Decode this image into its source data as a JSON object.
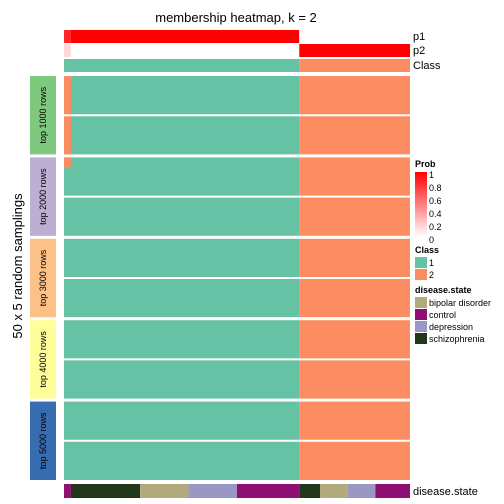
{
  "chart_data": {
    "type": "heatmap",
    "title": "membership heatmap, k = 2",
    "ylabel": "50 x 5 random samplings",
    "top_annotations": [
      "p1",
      "p2",
      "Class"
    ],
    "bottom_annotation": "disease.state",
    "row_groups": [
      "top 1000 rows",
      "top 2000 rows",
      "top 3000 rows",
      "top 4000 rows",
      "top 5000 rows"
    ],
    "class_split_fraction": 0.68,
    "outlier_fraction": 0.02,
    "p1": {
      "left": 0.85,
      "main_cluster1": 1.0,
      "cluster2": 0.0
    },
    "p2": {
      "left": 0.15,
      "main_cluster1": 0.0,
      "cluster2": 1.0
    },
    "disease_state_segments": [
      {
        "class": "control",
        "width": 0.02
      },
      {
        "class": "schizophrenia",
        "width": 0.2
      },
      {
        "class": "bipolar disorder",
        "width": 0.14
      },
      {
        "class": "depression",
        "width": 0.14
      },
      {
        "class": "control",
        "width": 0.18
      },
      {
        "class": "schizophrenia",
        "width": 0.06
      },
      {
        "class": "bipolar disorder",
        "width": 0.08
      },
      {
        "class": "depression",
        "width": 0.08
      },
      {
        "class": "control",
        "width": 0.1
      }
    ],
    "legends": {
      "prob": {
        "title": "Prob",
        "ticks": [
          "1",
          "0.8",
          "0.6",
          "0.4",
          "0.2",
          "0"
        ]
      },
      "class": {
        "title": "Class",
        "items": [
          {
            "label": "1",
            "color": "#66C2A5"
          },
          {
            "label": "2",
            "color": "#FC8D62"
          }
        ]
      },
      "disease_state": {
        "title": "disease.state",
        "items": [
          {
            "label": "bipolar disorder",
            "color": "#B2AA7C"
          },
          {
            "label": "control",
            "color": "#8F0F72"
          },
          {
            "label": "depression",
            "color": "#9B97C4"
          },
          {
            "label": "schizophrenia",
            "color": "#22361A"
          }
        ]
      }
    },
    "group_colors": [
      "#7FC97F",
      "#BEAED4",
      "#FDC086",
      "#FFFF99",
      "#386CB0"
    ],
    "colors": {
      "class1": "#66C2A5",
      "class2": "#FC8D62",
      "prob_high": "#FF0000",
      "prob_low": "#FFFFFF"
    }
  }
}
